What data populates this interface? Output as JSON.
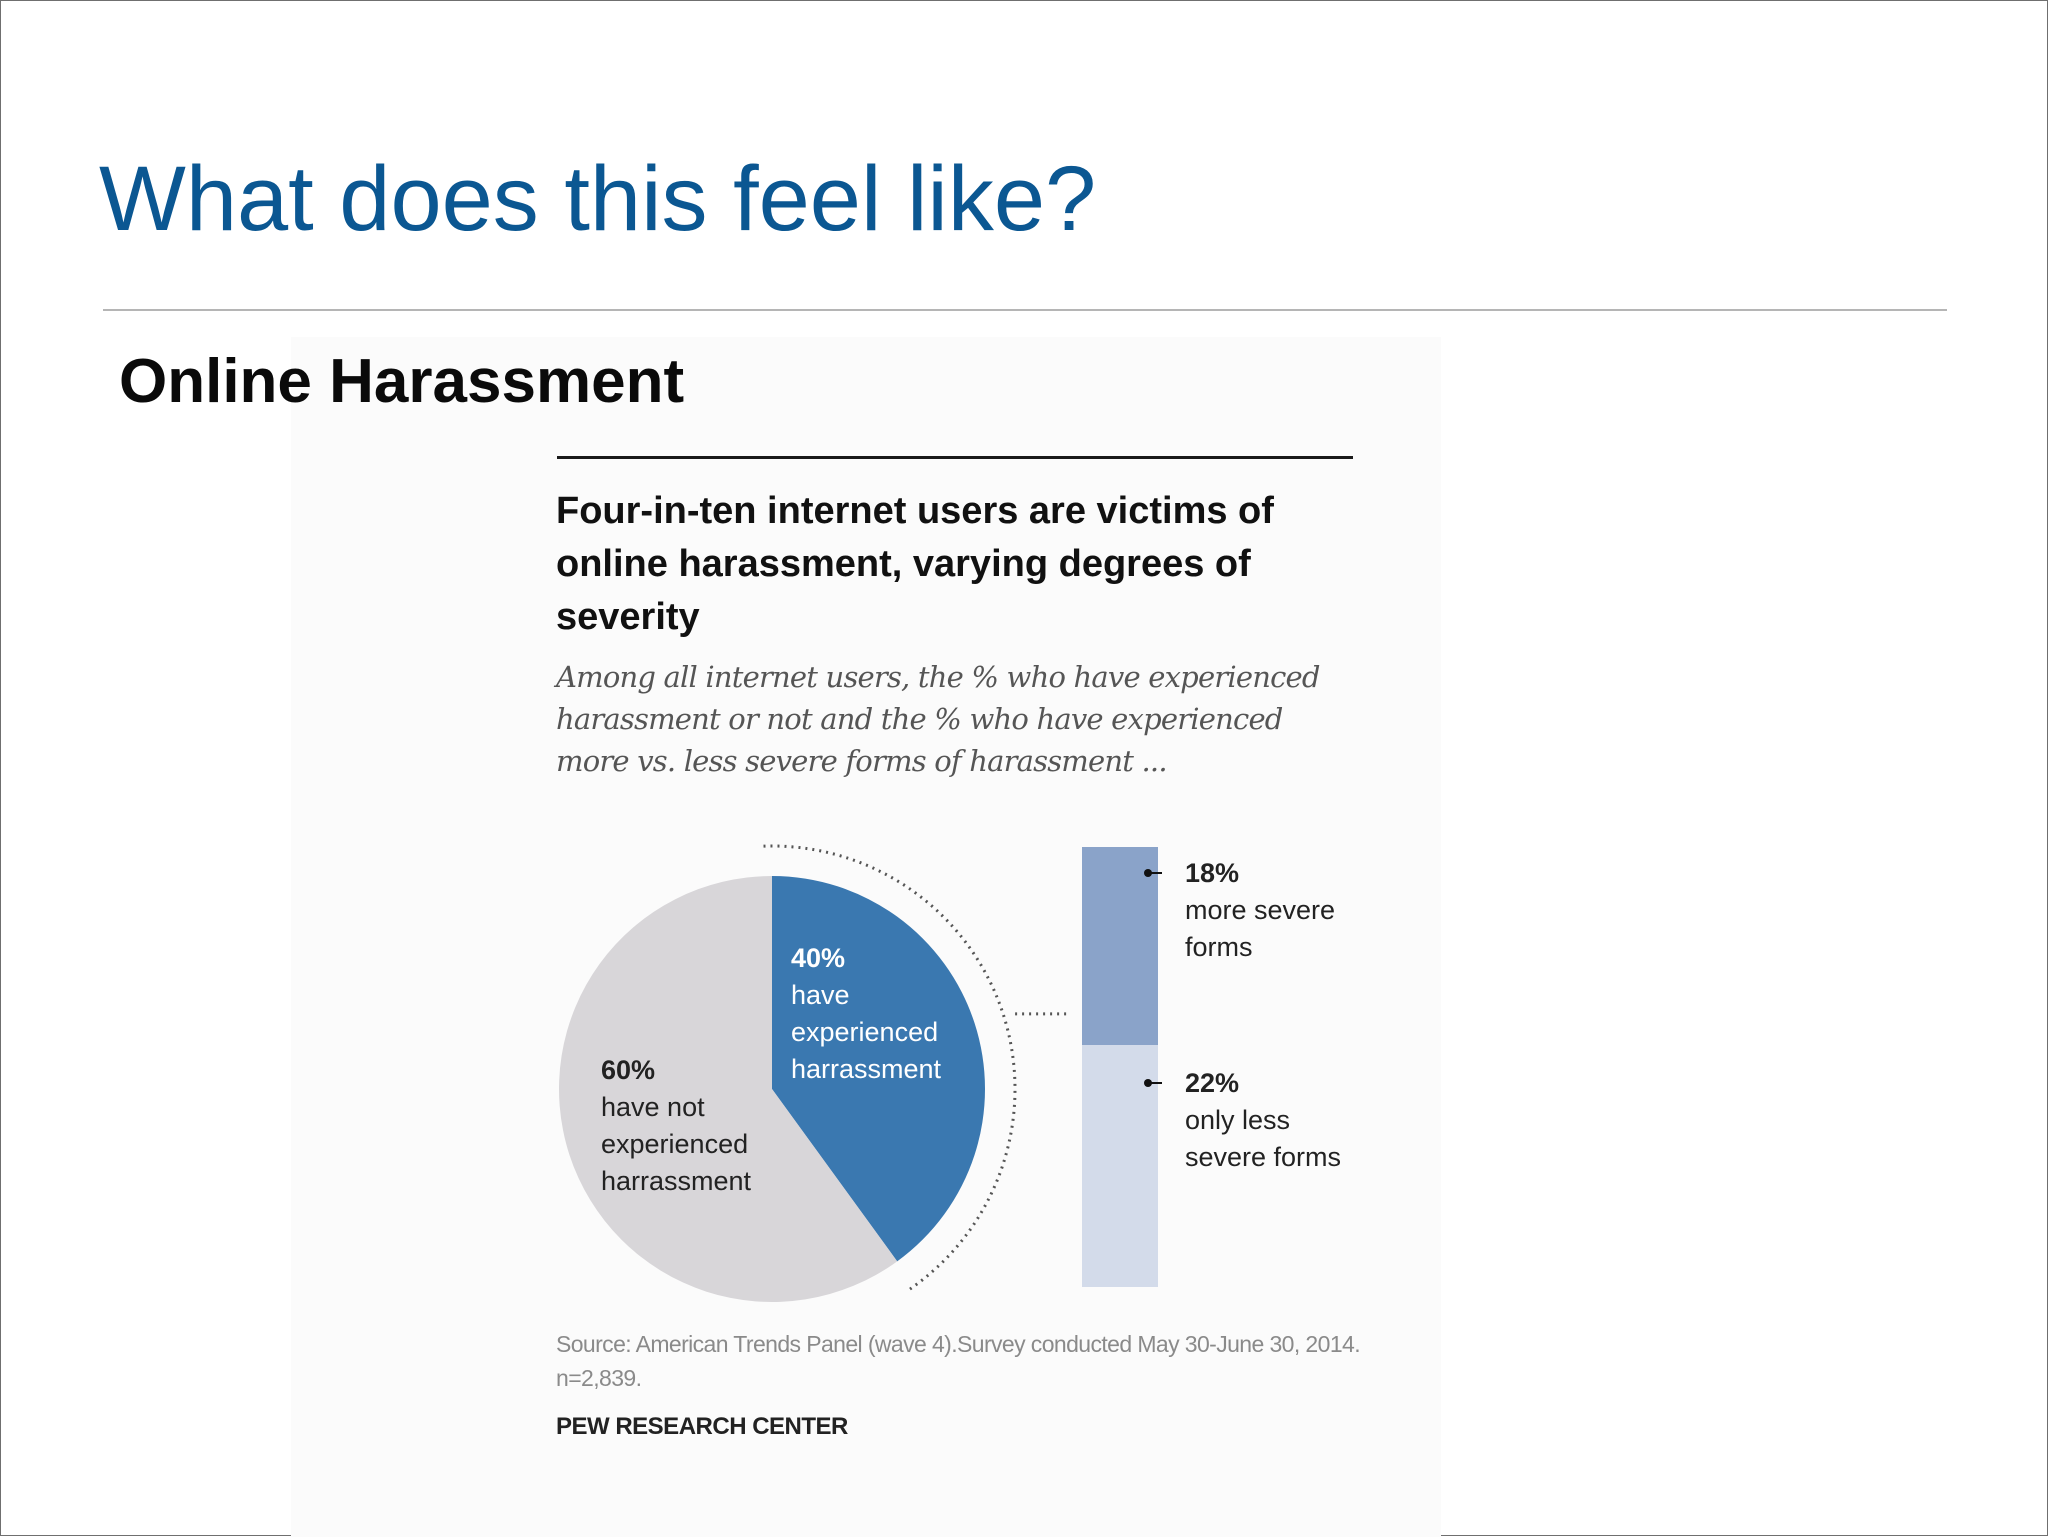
{
  "slide": {
    "title": "What does this feel like?",
    "section_heading": "Online Harassment"
  },
  "figure": {
    "title": "Four-in-ten internet users are victims of online harassment, varying degrees of severity",
    "subtitle": "Among all internet users, the % who have experienced harassment or not and the % who have experienced more vs. less severe forms of harassment ...",
    "source": "Source: American Trends Panel (wave 4).Survey conducted May 30-June 30, 2014. n=2,839.",
    "organization": "PEW RESEARCH CENTER"
  },
  "colors": {
    "title_blue": "#0b5792",
    "pie_experienced": "#3a78b0",
    "pie_not_experienced": "#d8d6d9",
    "bar_more_severe": "#8aa3c9",
    "bar_less_severe": "#d3dbea"
  },
  "chart_data": {
    "type": "pie",
    "pie": {
      "slices": [
        {
          "key": "experienced",
          "value": 40,
          "pct_label": "40%",
          "label_lines": [
            "have",
            "experienced",
            "harrassment"
          ],
          "color": "#3a78b0"
        },
        {
          "key": "not_experienced",
          "value": 60,
          "pct_label": "60%",
          "label_lines": [
            "have not",
            "experienced",
            "harrassment"
          ],
          "color": "#d8d6d9"
        }
      ]
    },
    "breakdown_bar": {
      "type": "stacked_bar",
      "segments": [
        {
          "key": "more_severe",
          "value": 18,
          "pct_label": "18%",
          "label_lines": [
            "more severe",
            "forms"
          ],
          "color": "#8aa3c9"
        },
        {
          "key": "less_severe",
          "value": 22,
          "pct_label": "22%",
          "label_lines": [
            "only less",
            "severe forms"
          ],
          "color": "#d3dbea"
        }
      ]
    }
  }
}
